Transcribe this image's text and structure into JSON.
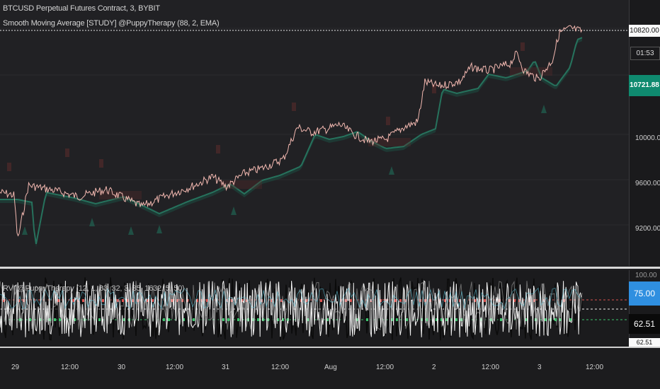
{
  "legend": {
    "symbol": "BTCUSD Perpetual Futures Contract, 3, BYBIT",
    "indicator": "Smooth Moving Average [STUDY] @PuppyTherapy (88, 2, EMA)",
    "oscillator": "RVI @PuppyTherapy (12, 1, 83, 32, 3, 35, 1632, 5, 50)"
  },
  "price_axis": {
    "ticks": [
      "10820.00",
      "10000.00",
      "9600.00",
      "9200.00"
    ],
    "current_price": "10721.88",
    "countdown": "01:53",
    "high_line_label": "10820.00"
  },
  "osc_axis": {
    "top": "100.00",
    "upper_tag": "75.00",
    "value_tag": "62.51",
    "bottom_tag": "62.51"
  },
  "time_axis": {
    "labels": [
      "29",
      "12:00",
      "30",
      "12:00",
      "31",
      "12:00",
      "Aug",
      "12:00",
      "2",
      "12:00",
      "3",
      "12:00"
    ]
  },
  "colors": {
    "price_line": "#f2b8b0",
    "ma_up": "#1f6e5a",
    "ma_down": "#7a3a3a",
    "current_tag": "#0f8a6f",
    "upper_tag": "#2f8fe0",
    "osc_red": "#d9534f",
    "osc_green": "#3ec46d"
  }
}
